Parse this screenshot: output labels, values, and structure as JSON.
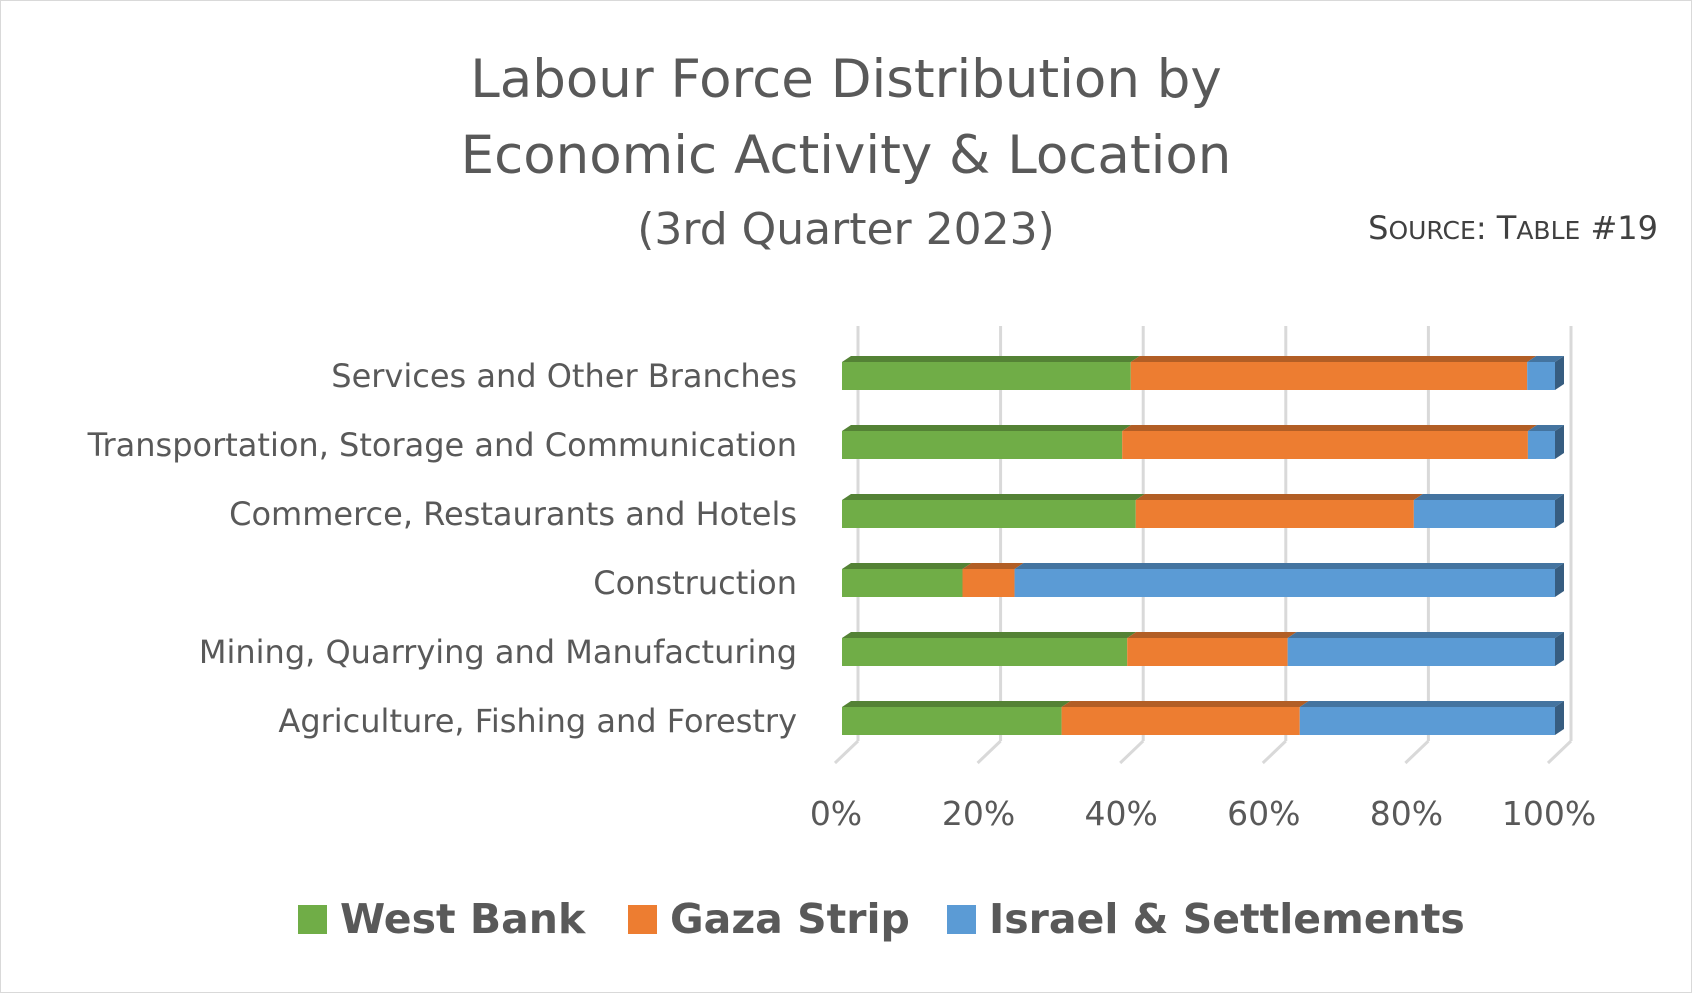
{
  "chart_data": {
    "type": "bar",
    "orientation": "horizontal",
    "stacked": "percent",
    "title_lines": [
      "Labour Force Distribution by",
      "Economic Activity & Location"
    ],
    "subtitle": "(3rd Quarter 2023)",
    "source": {
      "prefix_cap1": "S",
      "prefix_rest": "OURCE",
      "colon": ": ",
      "label_cap1": "T",
      "label_rest": "ABLE",
      "suffix": " #19"
    },
    "categories": [
      "Services and Other Branches",
      "Transportation, Storage and Communication",
      "Commerce, Restaurants and Hotels",
      "Construction",
      "Mining, Quarrying and Manufacturing",
      "Agriculture, Fishing and Forestry"
    ],
    "series": [
      {
        "name": "West Bank",
        "color": "#70ad47",
        "values": [
          40.5,
          39.3,
          41.2,
          16.9,
          40.0,
          30.8
        ]
      },
      {
        "name": "Gaza Strip",
        "color": "#ed7d31",
        "values": [
          55.6,
          56.9,
          39.0,
          7.3,
          22.5,
          33.4
        ]
      },
      {
        "name": "Israel & Settlements",
        "color": "#5b9bd5",
        "values": [
          3.9,
          3.8,
          19.8,
          75.8,
          37.5,
          35.8
        ]
      }
    ],
    "x_ticks": [
      "0%",
      "20%",
      "40%",
      "60%",
      "80%",
      "100%"
    ],
    "xlim": [
      0,
      100
    ],
    "grid": true,
    "legend_position": "bottom",
    "style": "3d"
  }
}
